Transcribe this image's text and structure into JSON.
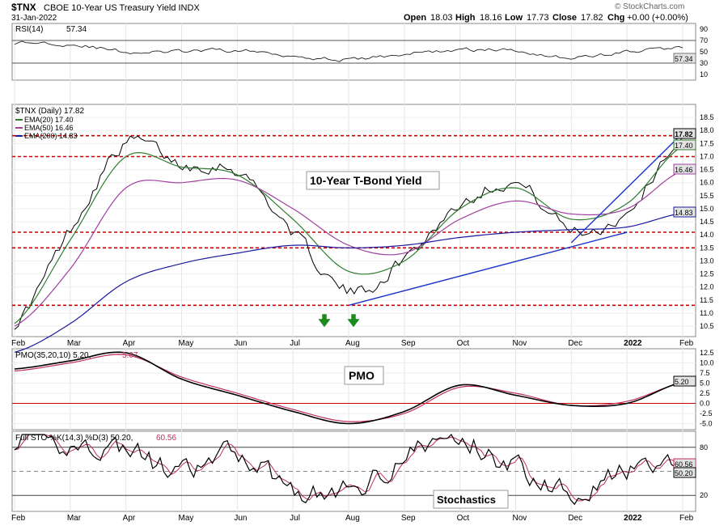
{
  "header": {
    "symbol": "$TNX",
    "name": "CBOE 10-Year US Treasury Yield INDX",
    "date": "31-Jan-2022",
    "open_label": "Open",
    "open": "18.03",
    "high_label": "High",
    "high": "18.16",
    "low_label": "Low",
    "low": "17.73",
    "close_label": "Close",
    "close": "17.82",
    "chg_label": "Chg",
    "chg": "+0.00 (+0.00%)",
    "copyright": "© StockCharts.com"
  },
  "months": [
    "Feb",
    "Mar",
    "Apr",
    "May",
    "Jun",
    "Jul",
    "Aug",
    "Sep",
    "Oct",
    "Nov",
    "Dec",
    "2022",
    "Feb"
  ],
  "rsi": {
    "label": "RSI(14)",
    "value": "57.34",
    "badge": "57.34",
    "ticks": [
      "90",
      "70",
      "50",
      "30",
      "10"
    ]
  },
  "price": {
    "label": "$TNX (Daily) 17.82",
    "ema20": "EMA(20) 17.40",
    "ema50": "EMA(50) 16.46",
    "ema200": "EMA(200) 14.83",
    "badges": [
      "17.82",
      "17.40",
      "16.46",
      "14.83"
    ],
    "ticks": [
      "18.5",
      "18.0",
      "17.5",
      "17.0",
      "16.5",
      "16.0",
      "15.5",
      "15.0",
      "14.5",
      "14.0",
      "13.5",
      "13.0",
      "12.5",
      "12.0",
      "11.5",
      "11.0",
      "10.5"
    ],
    "annotation": "10-Year T-Bond Yield"
  },
  "pmo": {
    "label": "PMO(35,20,10) 5.20,",
    "signal": "5.07",
    "annotation": "PMO",
    "badge": "5.20",
    "ticks": [
      "12.5",
      "10.0",
      "7.5",
      "5.0",
      "2.5",
      "0.0",
      "-2.5",
      "-5.0"
    ]
  },
  "sto": {
    "label": "Full STO %K(14,3) %D(3) 50.20,",
    "signal": "60.56",
    "annotation": "Stochastics",
    "badges": [
      "60.56",
      "50.20"
    ],
    "ticks": [
      "80",
      "20"
    ]
  },
  "colors": {
    "price": "#000000",
    "ema20": "#2e7d2e",
    "ema50": "#a040a0",
    "ema200": "#1a1aa0",
    "trend": "#1a35c8",
    "support": "#cc0000",
    "arrow": "#1d8a1d",
    "signal": "#c0305a"
  },
  "chart_data": [
    {
      "type": "line",
      "title": "$TNX CBOE 10-Year US Treasury Yield INDX",
      "xlabel": "",
      "ylabel": "",
      "ylim": [
        10.1,
        19.0
      ],
      "x": [
        "Feb",
        "Mar",
        "Apr",
        "May",
        "Jun",
        "Jul",
        "Aug",
        "Sep",
        "Oct",
        "Nov",
        "Dec",
        "2022",
        "Feb"
      ],
      "series": [
        {
          "name": "$TNX (Daily)",
          "values": [
            10.6,
            14.2,
            17.5,
            16.7,
            16.5,
            14.1,
            11.8,
            13.1,
            15.2,
            16.0,
            14.2,
            14.9,
            17.8
          ]
        },
        {
          "name": "EMA(20)",
          "values": [
            10.6,
            13.8,
            17.0,
            16.6,
            16.3,
            14.6,
            12.6,
            13.0,
            15.0,
            15.8,
            14.6,
            15.2,
            17.4
          ]
        },
        {
          "name": "EMA(50)",
          "values": [
            10.5,
            12.7,
            15.8,
            16.0,
            16.1,
            15.0,
            13.6,
            13.3,
            14.6,
            15.3,
            14.8,
            15.0,
            16.46
          ]
        },
        {
          "name": "EMA(200)",
          "values": [
            9.5,
            10.6,
            12.2,
            12.9,
            13.3,
            13.6,
            13.5,
            13.6,
            13.9,
            14.1,
            14.2,
            14.3,
            14.83
          ]
        }
      ],
      "support_levels": [
        17.8,
        17.0,
        14.1,
        13.5,
        11.3
      ],
      "trendlines": [
        {
          "from": [
            "Aug",
            11.3
          ],
          "to": [
            "2022",
            14.1
          ]
        },
        {
          "from": [
            "Dec",
            13.7
          ],
          "to": [
            "Feb",
            17.9
          ]
        }
      ],
      "grid": true
    },
    {
      "type": "line",
      "title": "RSI(14)",
      "ylim": [
        0,
        100
      ],
      "x": [
        "Feb",
        "Mar",
        "Apr",
        "May",
        "Jun",
        "Jul",
        "Aug",
        "Sep",
        "Oct",
        "Nov",
        "Dec",
        "2022",
        "Feb"
      ],
      "series": [
        {
          "name": "RSI(14)",
          "values": [
            66,
            64,
            50,
            50,
            52,
            44,
            36,
            46,
            53,
            52,
            40,
            50,
            57.34
          ]
        }
      ],
      "reference_lines": [
        70,
        30
      ]
    },
    {
      "type": "line",
      "title": "PMO(35,20,10)",
      "ylim": [
        -6.5,
        13.5
      ],
      "x": [
        "Feb",
        "Mar",
        "Apr",
        "May",
        "Jun",
        "Jul",
        "Aug",
        "Sep",
        "Oct",
        "Nov",
        "Dec",
        "2022",
        "Feb"
      ],
      "series": [
        {
          "name": "PMO",
          "values": [
            8.5,
            10.5,
            12.5,
            6.0,
            2.0,
            -2.0,
            -5.0,
            -2.0,
            4.5,
            2.0,
            -0.5,
            0.0,
            5.2
          ]
        },
        {
          "name": "Signal",
          "values": [
            8.0,
            10.0,
            12.0,
            6.5,
            2.5,
            -1.5,
            -4.5,
            -2.5,
            4.0,
            2.5,
            -0.5,
            0.5,
            5.07
          ]
        }
      ],
      "reference_lines": [
        0
      ]
    },
    {
      "type": "line",
      "title": "Full STO %K(14,3) %D(3)",
      "ylim": [
        0,
        100
      ],
      "x": [
        "Feb",
        "Mar",
        "Apr",
        "May",
        "Jun",
        "Jul",
        "Aug",
        "Sep",
        "Oct",
        "Nov",
        "Dec",
        "2022",
        "Feb"
      ],
      "series": [
        {
          "name": "%K",
          "values": [
            90,
            82,
            78,
            45,
            72,
            30,
            25,
            70,
            88,
            55,
            30,
            48,
            50.2
          ]
        },
        {
          "name": "%D",
          "values": [
            88,
            80,
            74,
            50,
            68,
            34,
            28,
            66,
            85,
            58,
            34,
            46,
            60.56
          ]
        }
      ],
      "reference_lines": [
        80,
        50,
        20
      ]
    }
  ]
}
